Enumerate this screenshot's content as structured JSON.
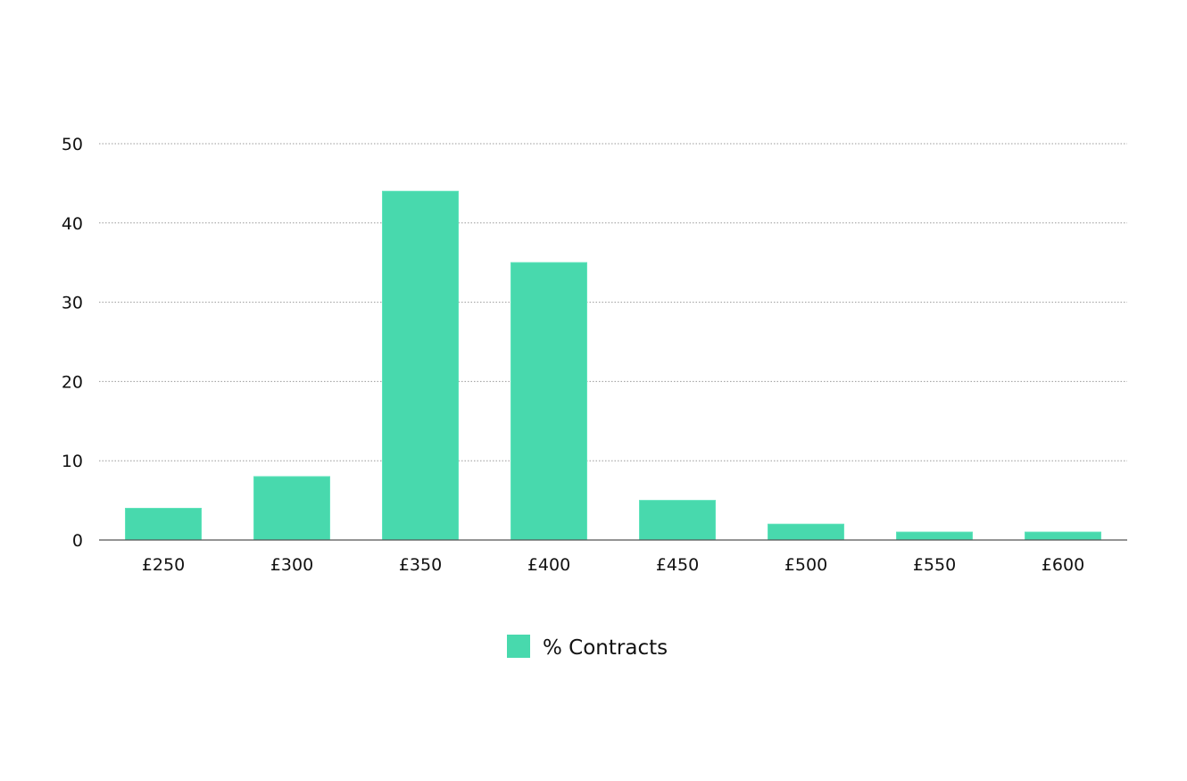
{
  "chart_data": {
    "type": "bar",
    "categories": [
      "£250",
      "£300",
      "£350",
      "£400",
      "£450",
      "£500",
      "£550",
      "£600"
    ],
    "series": [
      {
        "name": "% Contracts",
        "values": [
          4,
          8,
          44,
          35,
          5,
          2,
          1,
          1
        ],
        "color": "#48d9ad"
      }
    ],
    "title": "",
    "xlabel": "",
    "ylabel": "",
    "ylim": [
      0,
      50
    ],
    "yticks": [
      0,
      10,
      20,
      30,
      40,
      50
    ],
    "grid": true,
    "legend_position": "bottom-center"
  }
}
